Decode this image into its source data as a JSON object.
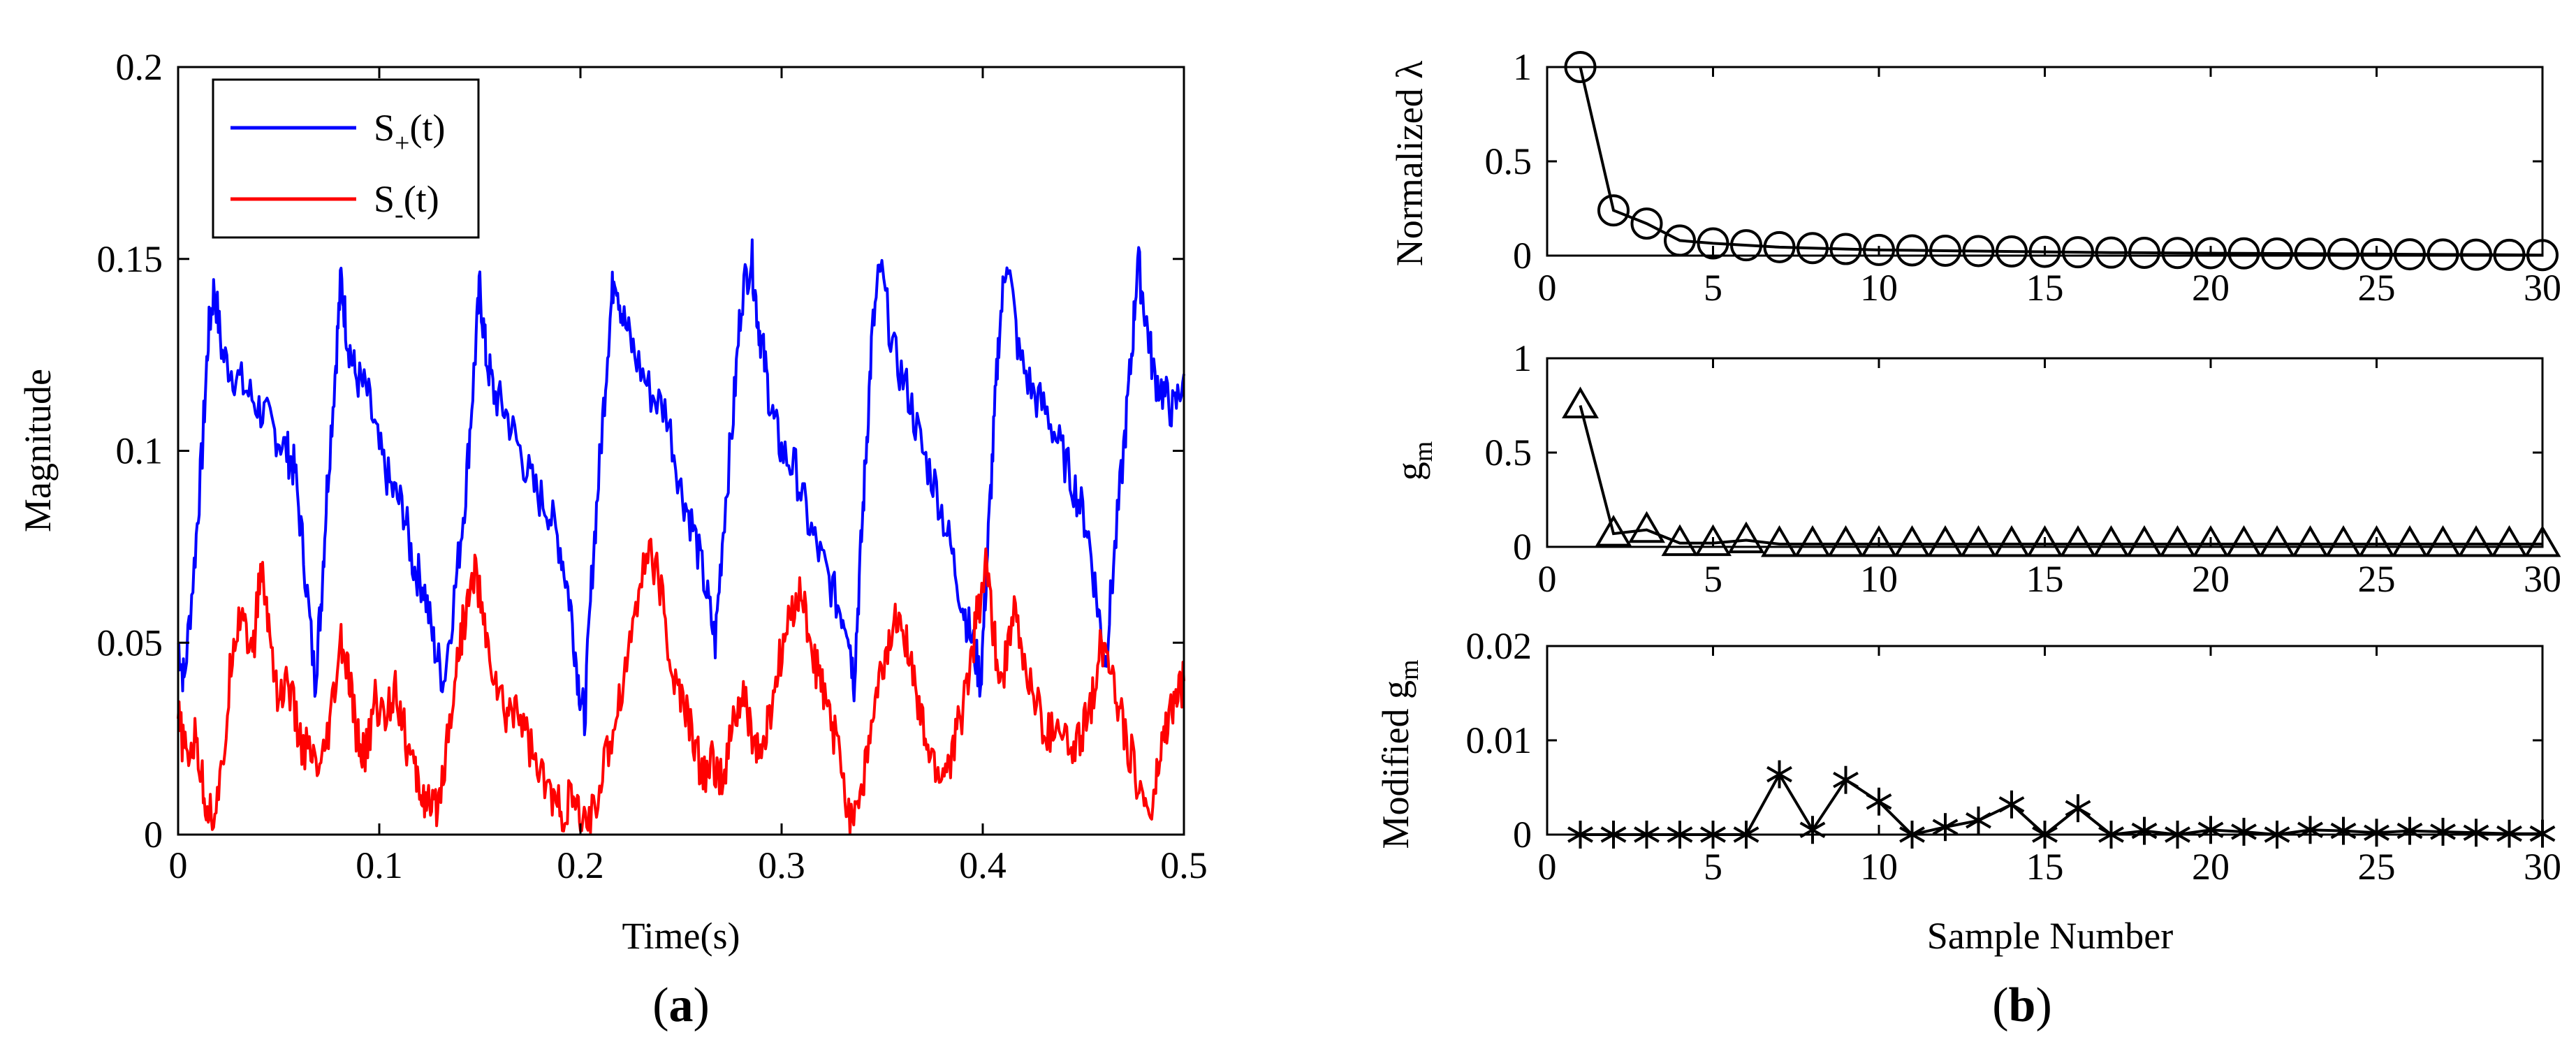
{
  "chart_data": [
    {
      "panel_label": "(a)",
      "panel_letter": "a",
      "type": "line",
      "title": "",
      "xlabel": "Time(s)",
      "ylabel": "Magnitude",
      "xlim": [
        0,
        0.5
      ],
      "ylim": [
        0,
        0.2
      ],
      "x_ticks": [
        "0",
        "0.1",
        "0.2",
        "0.3",
        "0.4",
        "0.5"
      ],
      "y_ticks": [
        "0",
        "0.05",
        "0.1",
        "0.15",
        "0.2"
      ],
      "grid": false,
      "legend_position": "top-left",
      "series": [
        {
          "name": "S+(t)",
          "legend_base": "S",
          "legend_sub": "+",
          "legend_tail": "(t)",
          "color": "#0000ff",
          "x": [
            0,
            0.003,
            0.008,
            0.012,
            0.015,
            0.018,
            0.022,
            0.028,
            0.035,
            0.042,
            0.048,
            0.054,
            0.058,
            0.063,
            0.068,
            0.071,
            0.074,
            0.078,
            0.081,
            0.084,
            0.088,
            0.094,
            0.1,
            0.106,
            0.112,
            0.117,
            0.122,
            0.127,
            0.132,
            0.138,
            0.143,
            0.147,
            0.15,
            0.153,
            0.157,
            0.163,
            0.17,
            0.177,
            0.184,
            0.19,
            0.195,
            0.199,
            0.202,
            0.206,
            0.21,
            0.214,
            0.217,
            0.221,
            0.227,
            0.235,
            0.243,
            0.25,
            0.256,
            0.262,
            0.267,
            0.271,
            0.276,
            0.28,
            0.285,
            0.288,
            0.291,
            0.295,
            0.3,
            0.307,
            0.314,
            0.321,
            0.328,
            0.333,
            0.336,
            0.339,
            0.342,
            0.345,
            0.349,
            0.356,
            0.363,
            0.37,
            0.377,
            0.384,
            0.39,
            0.395,
            0.399,
            0.402,
            0.405,
            0.408,
            0.412,
            0.418,
            0.425,
            0.432,
            0.439,
            0.446,
            0.452,
            0.457,
            0.461,
            0.465,
            0.47,
            0.474,
            0.477,
            0.481,
            0.485,
            0.49,
            0.495,
            0.5
          ],
          "values": [
            0.05,
            0.04,
            0.07,
            0.1,
            0.13,
            0.143,
            0.125,
            0.12,
            0.115,
            0.11,
            0.105,
            0.1,
            0.095,
            0.07,
            0.04,
            0.06,
            0.09,
            0.12,
            0.145,
            0.13,
            0.12,
            0.115,
            0.1,
            0.09,
            0.085,
            0.07,
            0.065,
            0.05,
            0.04,
            0.065,
            0.09,
            0.12,
            0.143,
            0.125,
            0.115,
            0.11,
            0.1,
            0.09,
            0.085,
            0.075,
            0.06,
            0.04,
            0.03,
            0.07,
            0.1,
            0.13,
            0.148,
            0.135,
            0.125,
            0.115,
            0.11,
            0.09,
            0.08,
            0.065,
            0.05,
            0.08,
            0.11,
            0.14,
            0.151,
            0.135,
            0.125,
            0.11,
            0.1,
            0.095,
            0.08,
            0.07,
            0.06,
            0.055,
            0.04,
            0.07,
            0.1,
            0.13,
            0.148,
            0.125,
            0.115,
            0.1,
            0.09,
            0.075,
            0.06,
            0.05,
            0.04,
            0.07,
            0.1,
            0.13,
            0.152,
            0.125,
            0.115,
            0.11,
            0.1,
            0.09,
            0.08,
            0.06,
            0.045,
            0.07,
            0.1,
            0.125,
            0.15,
            0.135,
            0.12,
            0.115,
            0.11,
            0.12
          ]
        },
        {
          "name": "S-(t)",
          "legend_base": "S",
          "legend_sub": "-",
          "legend_tail": "(t)",
          "color": "#ff0000",
          "x": [
            0,
            0.004,
            0.009,
            0.013,
            0.017,
            0.022,
            0.027,
            0.032,
            0.037,
            0.041,
            0.045,
            0.05,
            0.055,
            0.06,
            0.066,
            0.071,
            0.076,
            0.081,
            0.085,
            0.089,
            0.093,
            0.098,
            0.103,
            0.108,
            0.113,
            0.118,
            0.122,
            0.126,
            0.13,
            0.135,
            0.14,
            0.144,
            0.148,
            0.153,
            0.158,
            0.163,
            0.168,
            0.174,
            0.18,
            0.186,
            0.191,
            0.196,
            0.2,
            0.205,
            0.211,
            0.217,
            0.223,
            0.229,
            0.235,
            0.241,
            0.246,
            0.251,
            0.256,
            0.261,
            0.266,
            0.271,
            0.276,
            0.281,
            0.286,
            0.29,
            0.294,
            0.299,
            0.304,
            0.309,
            0.314,
            0.319,
            0.324,
            0.329,
            0.334,
            0.339,
            0.344,
            0.349,
            0.354,
            0.359,
            0.364,
            0.369,
            0.374,
            0.379,
            0.384,
            0.389,
            0.394,
            0.398,
            0.402,
            0.406,
            0.41,
            0.415,
            0.42,
            0.426,
            0.432,
            0.438,
            0.444,
            0.449,
            0.454,
            0.459,
            0.464,
            0.469,
            0.474,
            0.479,
            0.484,
            0.488,
            0.492,
            0.496,
            0.5
          ],
          "values": [
            0.03,
            0.02,
            0.025,
            0.01,
            0.005,
            0.015,
            0.05,
            0.06,
            0.045,
            0.07,
            0.055,
            0.035,
            0.04,
            0.025,
            0.02,
            0.015,
            0.03,
            0.05,
            0.04,
            0.025,
            0.02,
            0.035,
            0.03,
            0.04,
            0.025,
            0.015,
            0.01,
            0.005,
            0.01,
            0.03,
            0.05,
            0.06,
            0.07,
            0.05,
            0.04,
            0.03,
            0.035,
            0.025,
            0.015,
            0.01,
            0.005,
            0.01,
            0.002,
            0.005,
            0.015,
            0.03,
            0.045,
            0.065,
            0.075,
            0.06,
            0.04,
            0.035,
            0.025,
            0.015,
            0.02,
            0.012,
            0.03,
            0.035,
            0.025,
            0.02,
            0.03,
            0.045,
            0.055,
            0.065,
            0.05,
            0.04,
            0.03,
            0.02,
            0.005,
            0.01,
            0.025,
            0.04,
            0.05,
            0.06,
            0.045,
            0.03,
            0.02,
            0.015,
            0.02,
            0.03,
            0.045,
            0.06,
            0.07,
            0.05,
            0.04,
            0.06,
            0.045,
            0.035,
            0.025,
            0.03,
            0.02,
            0.025,
            0.035,
            0.05,
            0.045,
            0.03,
            0.02,
            0.01,
            0.005,
            0.02,
            0.03,
            0.035,
            0.04
          ]
        }
      ]
    },
    {
      "panel_label": "(b)",
      "panel_letter": "b",
      "type": "line",
      "title": "",
      "xlabel": "Sample Number",
      "x_ticks": [
        "0",
        "5",
        "10",
        "15",
        "20",
        "25",
        "30"
      ],
      "xlim": [
        0,
        30
      ],
      "grid": false,
      "subplots": [
        {
          "ylabel": "Normalized λ",
          "ylim": [
            0,
            1
          ],
          "y_ticks": [
            "0",
            "0.5",
            "1"
          ],
          "marker": "circle",
          "color": "#000000",
          "x": [
            1,
            2,
            3,
            4,
            5,
            6,
            7,
            8,
            9,
            10,
            11,
            12,
            13,
            14,
            15,
            16,
            17,
            18,
            19,
            20,
            21,
            22,
            23,
            24,
            25,
            26,
            27,
            28,
            29,
            30
          ],
          "values": [
            1,
            0.24,
            0.17,
            0.08,
            0.065,
            0.055,
            0.045,
            0.04,
            0.035,
            0.03,
            0.028,
            0.026,
            0.024,
            0.022,
            0.02,
            0.018,
            0.016,
            0.015,
            0.014,
            0.013,
            0.012,
            0.011,
            0.01,
            0.009,
            0.008,
            0.007,
            0.006,
            0.005,
            0.004,
            0.003
          ]
        },
        {
          "ylabel": "gm",
          "ylabel_base": "g",
          "ylabel_sub": "m",
          "ylim": [
            0,
            1
          ],
          "y_ticks": [
            "0",
            "0.5",
            "1"
          ],
          "marker": "triangle",
          "color": "#000000",
          "x": [
            1,
            2,
            3,
            4,
            5,
            6,
            7,
            8,
            9,
            10,
            11,
            12,
            13,
            14,
            15,
            16,
            17,
            18,
            19,
            20,
            21,
            22,
            23,
            24,
            25,
            26,
            27,
            28,
            29,
            30
          ],
          "values": [
            0.75,
            0.07,
            0.09,
            0.02,
            0.02,
            0.035,
            0.015,
            0.015,
            0.015,
            0.015,
            0.015,
            0.015,
            0.015,
            0.015,
            0.015,
            0.015,
            0.015,
            0.015,
            0.015,
            0.015,
            0.015,
            0.015,
            0.015,
            0.015,
            0.015,
            0.015,
            0.015,
            0.015,
            0.015,
            0.015
          ]
        },
        {
          "ylabel": "Modified gm",
          "ylabel_pre": "Modified g",
          "ylabel_sub": "m",
          "ylim": [
            0,
            0.02
          ],
          "y_ticks": [
            "0",
            "0.01",
            "0.02"
          ],
          "marker": "asterisk",
          "color": "#000000",
          "x": [
            1,
            2,
            3,
            4,
            5,
            6,
            7,
            8,
            9,
            10,
            11,
            12,
            13,
            14,
            15,
            16,
            17,
            18,
            19,
            20,
            21,
            22,
            23,
            24,
            25,
            26,
            27,
            28,
            29,
            30
          ],
          "values": [
            0,
            0,
            0,
            0,
            0,
            0,
            0.0064,
            0.0005,
            0.0058,
            0.0035,
            0,
            0.0008,
            0.0015,
            0.0032,
            0,
            0.0028,
            0,
            0.0004,
            0,
            0.0005,
            0.0003,
            0,
            0.0005,
            0.0004,
            0.0002,
            0.0004,
            0.0003,
            0.0002,
            0.0001,
            0.0001
          ]
        }
      ]
    }
  ]
}
